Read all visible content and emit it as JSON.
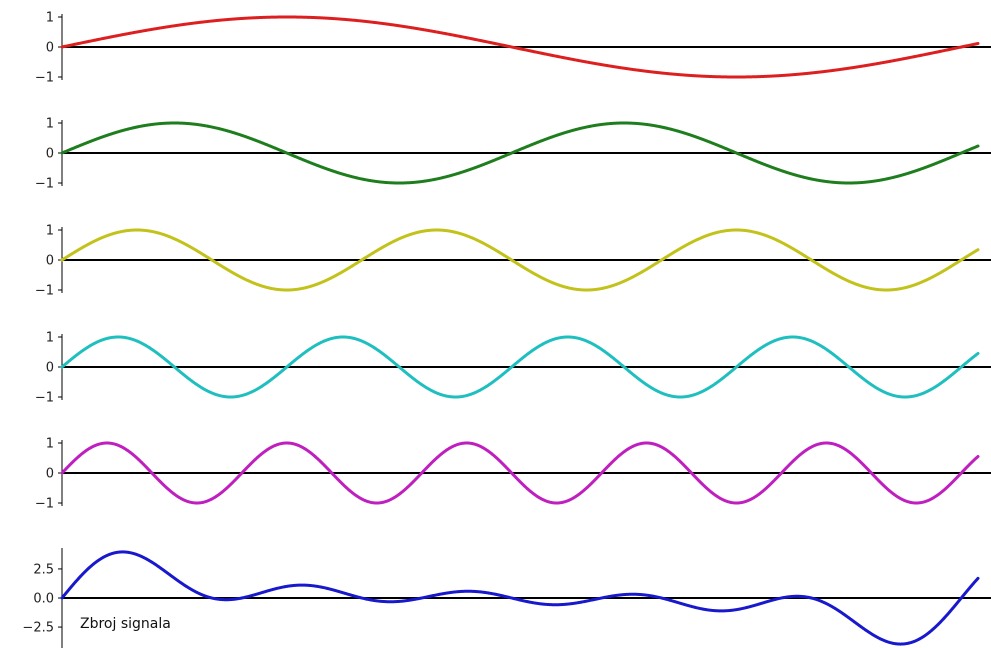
{
  "chart_data": [
    {
      "type": "line",
      "x_range": [
        0,
        6.4
      ],
      "ylim": [
        -1.1,
        1.1
      ],
      "yticks": [
        1,
        0,
        -1
      ],
      "ytick_labels": [
        "1",
        "0",
        "−1"
      ],
      "zero_line": true,
      "series": [
        {
          "function": "sin",
          "frequency": 1,
          "amplitude": 1,
          "color": "#dd1f1f"
        }
      ]
    },
    {
      "type": "line",
      "x_range": [
        0,
        6.4
      ],
      "ylim": [
        -1.1,
        1.1
      ],
      "yticks": [
        1,
        0,
        -1
      ],
      "ytick_labels": [
        "1",
        "0",
        "−1"
      ],
      "zero_line": true,
      "series": [
        {
          "function": "sin",
          "frequency": 2,
          "amplitude": 1,
          "color": "#1e7e1e"
        }
      ]
    },
    {
      "type": "line",
      "x_range": [
        0,
        6.4
      ],
      "ylim": [
        -1.1,
        1.1
      ],
      "yticks": [
        1,
        0,
        -1
      ],
      "ytick_labels": [
        "1",
        "0",
        "−1"
      ],
      "zero_line": true,
      "series": [
        {
          "function": "sin",
          "frequency": 3,
          "amplitude": 1,
          "color": "#c2c21a"
        }
      ]
    },
    {
      "type": "line",
      "x_range": [
        0,
        6.4
      ],
      "ylim": [
        -1.1,
        1.1
      ],
      "yticks": [
        1,
        0,
        -1
      ],
      "ytick_labels": [
        "1",
        "0",
        "−1"
      ],
      "zero_line": true,
      "series": [
        {
          "function": "sin",
          "frequency": 4,
          "amplitude": 1,
          "color": "#1fbfbf"
        }
      ]
    },
    {
      "type": "line",
      "x_range": [
        0,
        6.4
      ],
      "ylim": [
        -1.1,
        1.1
      ],
      "yticks": [
        1,
        0,
        -1
      ],
      "ytick_labels": [
        "1",
        "0",
        "−1"
      ],
      "zero_line": true,
      "series": [
        {
          "function": "sin",
          "frequency": 5,
          "amplitude": 1,
          "color": "#bf1fbf"
        }
      ]
    },
    {
      "type": "line",
      "x_range": [
        0,
        6.4
      ],
      "ylim": [
        -4.3,
        4.3
      ],
      "yticks": [
        2.5,
        0,
        -2.5
      ],
      "ytick_labels": [
        "2.5",
        "0.0",
        "−2.5"
      ],
      "zero_line": true,
      "annotation": "Zbroj signala",
      "series": [
        {
          "function": "sum_of_sines",
          "frequencies": [
            1,
            2,
            3,
            4,
            5
          ],
          "amplitude": 1,
          "color": "#1818cc"
        }
      ]
    }
  ]
}
